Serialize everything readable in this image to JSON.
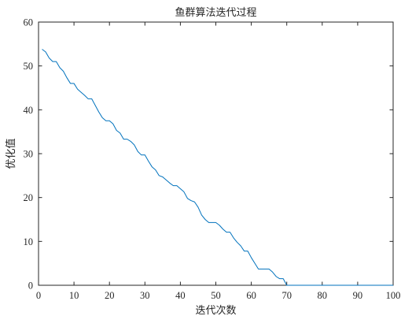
{
  "chart_data": {
    "type": "line",
    "title": "鱼群算法迭代过程",
    "xlabel": "迭代次数",
    "ylabel": "优化值",
    "xlim": [
      0,
      100
    ],
    "ylim": [
      0,
      60
    ],
    "xticks": [
      0,
      10,
      20,
      30,
      40,
      50,
      60,
      70,
      80,
      90,
      100
    ],
    "yticks": [
      0,
      10,
      20,
      30,
      40,
      50,
      60
    ],
    "grid": false,
    "series": [
      {
        "color": "#0072BD",
        "x": [
          1,
          2,
          3,
          4,
          5,
          6,
          7,
          8,
          9,
          10,
          11,
          12,
          13,
          14,
          15,
          16,
          17,
          18,
          19,
          20,
          21,
          22,
          23,
          24,
          25,
          26,
          27,
          28,
          29,
          30,
          31,
          32,
          33,
          34,
          35,
          36,
          37,
          38,
          39,
          40,
          41,
          42,
          43,
          44,
          45,
          46,
          47,
          48,
          49,
          50,
          51,
          52,
          53,
          54,
          55,
          56,
          57,
          58,
          59,
          60,
          61,
          62,
          63,
          64,
          65,
          66,
          67,
          68,
          69,
          70,
          71,
          72,
          73,
          74,
          75,
          76,
          77,
          78,
          79,
          80,
          81,
          82,
          83,
          84,
          85,
          86,
          87,
          88,
          89,
          90,
          91,
          92,
          93,
          94,
          95,
          96,
          97,
          98,
          99,
          100
        ],
        "y": [
          53.8,
          53.2,
          51.8,
          51.0,
          51.0,
          49.6,
          48.8,
          47.3,
          46.0,
          46.0,
          44.7,
          44.0,
          43.3,
          42.5,
          42.5,
          41.0,
          39.5,
          38.2,
          37.5,
          37.5,
          36.8,
          35.3,
          34.7,
          33.3,
          33.3,
          32.8,
          32.0,
          30.5,
          29.7,
          29.7,
          28.3,
          27.0,
          26.3,
          25.0,
          24.7,
          24.0,
          23.3,
          22.7,
          22.7,
          22.0,
          21.3,
          19.8,
          19.3,
          19.0,
          17.8,
          16.0,
          15.0,
          14.3,
          14.3,
          14.3,
          13.7,
          12.8,
          12.1,
          12.1,
          10.8,
          9.8,
          9.0,
          7.8,
          7.8,
          6.3,
          5.0,
          3.7,
          3.7,
          3.7,
          3.7,
          3.0,
          2.0,
          1.5,
          1.5,
          0,
          0,
          0,
          0,
          0,
          0,
          0,
          0,
          0,
          0,
          0,
          0,
          0,
          0,
          0,
          0,
          0,
          0,
          0,
          0,
          0,
          0,
          0,
          0,
          0,
          0,
          0,
          0,
          0,
          0,
          0
        ]
      }
    ]
  }
}
